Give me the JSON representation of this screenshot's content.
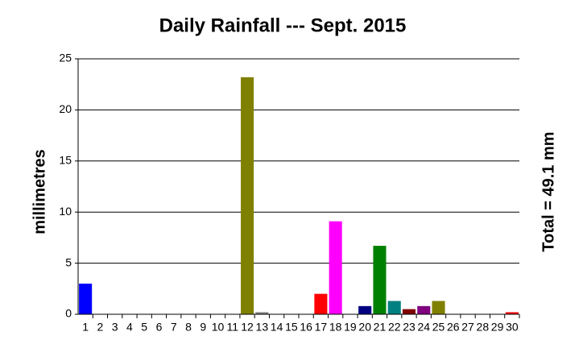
{
  "chart_data": {
    "type": "bar",
    "title": "Daily Rainfall --- Sept. 2015",
    "y_label": "millimetres",
    "annotation": "Total = 49.1 mm",
    "categories": [
      "1",
      "2",
      "3",
      "4",
      "5",
      "6",
      "7",
      "8",
      "9",
      "10",
      "11",
      "12",
      "13",
      "14",
      "15",
      "16",
      "17",
      "18",
      "19",
      "20",
      "21",
      "22",
      "23",
      "24",
      "25",
      "26",
      "27",
      "28",
      "29",
      "30"
    ],
    "values": [
      3.0,
      0,
      0,
      0,
      0,
      0,
      0,
      0,
      0,
      0,
      0,
      23.2,
      0.2,
      0,
      0,
      0,
      2.0,
      9.1,
      0,
      0.8,
      6.7,
      1.3,
      0.5,
      0.8,
      1.3,
      0,
      0,
      0,
      0,
      0.2
    ],
    "colors": [
      "#0000ff",
      null,
      null,
      null,
      null,
      null,
      null,
      null,
      null,
      null,
      null,
      "#808000",
      "#808080",
      null,
      null,
      null,
      "#ff0000",
      "#ff00ff",
      null,
      "#000080",
      "#008000",
      "#008080",
      "#800000",
      "#800080",
      "#808000",
      null,
      null,
      null,
      null,
      "#ff0000"
    ],
    "ylim": [
      0,
      25
    ],
    "yticks": [
      0,
      5,
      10,
      15,
      20,
      25
    ],
    "grid": true
  }
}
